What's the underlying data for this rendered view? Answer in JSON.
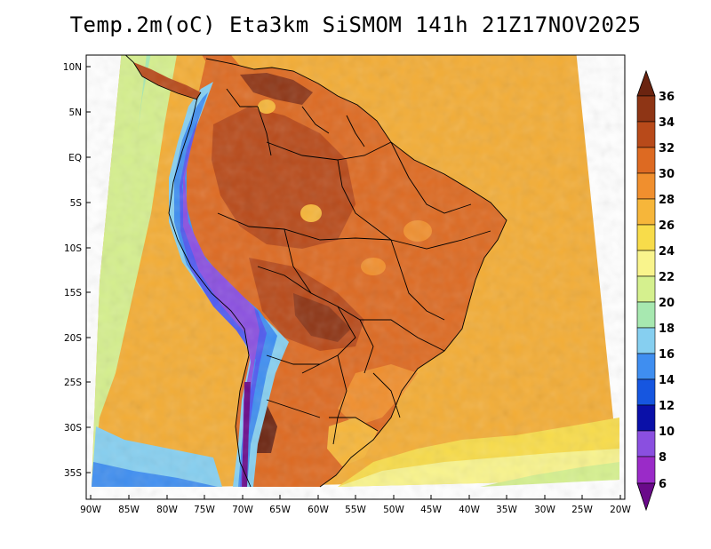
{
  "title": "Temp.2m(oC) Eta3km SiSMOM 141h 21Z17NOV2025",
  "map": {
    "lat_labels": [
      "10N",
      "5N",
      "EQ",
      "5S",
      "10S",
      "15S",
      "20S",
      "25S",
      "30S",
      "35S"
    ],
    "lon_labels": [
      "90W",
      "85W",
      "80W",
      "75W",
      "70W",
      "65W",
      "60W",
      "55W",
      "50W",
      "45W",
      "40W",
      "35W",
      "30W",
      "25W",
      "20W"
    ]
  },
  "colorbar": {
    "labels": [
      "36",
      "34",
      "32",
      "30",
      "28",
      "26",
      "24",
      "22",
      "20",
      "18",
      "16",
      "14",
      "12",
      "10",
      "8",
      "6"
    ],
    "colors": [
      "#6b2410",
      "#8e3515",
      "#b84a1a",
      "#dd6a22",
      "#f08f2e",
      "#f6b63a",
      "#f8dc4a",
      "#f9f48c",
      "#d5f08e",
      "#a7e8b0",
      "#86cff0",
      "#3f8ef0",
      "#1656e0",
      "#0a10a8",
      "#4f5af0",
      "#8a4fe0",
      "#9a2bc8",
      "#6a0a8a"
    ]
  }
}
